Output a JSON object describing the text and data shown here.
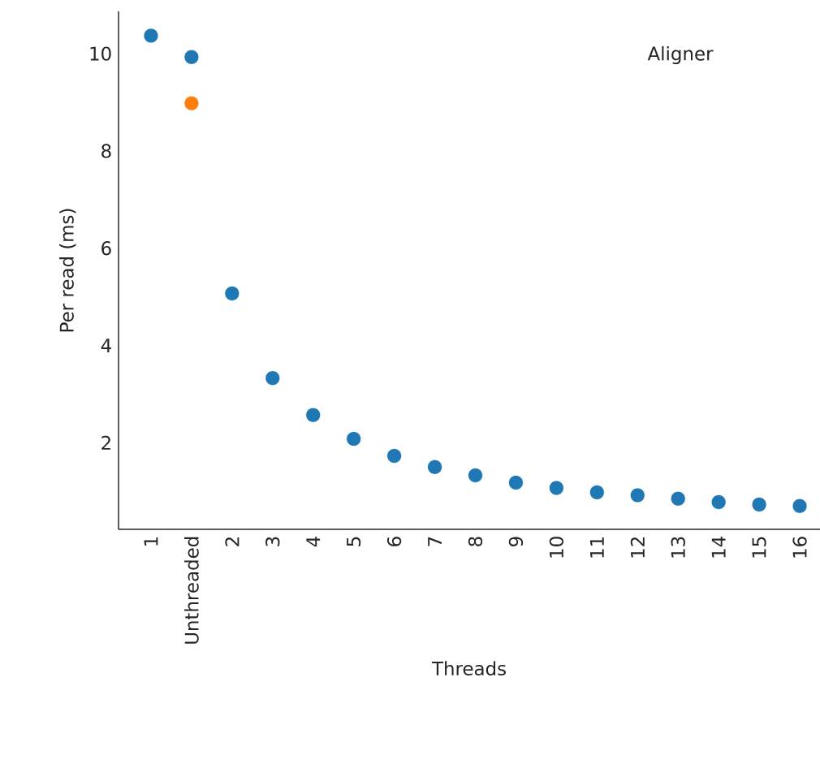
{
  "chart_data": {
    "type": "scatter",
    "xlabel": "Threads",
    "ylabel": "Per read (ms)",
    "legend_title": "Aligner",
    "categories": [
      "1",
      "Unthreaded",
      "2",
      "3",
      "4",
      "5",
      "6",
      "7",
      "8",
      "9",
      "10",
      "11",
      "12",
      "13",
      "14",
      "15",
      "16"
    ],
    "series": [
      {
        "color": "#1f77b4",
        "values": [
          10.37,
          9.93,
          5.07,
          3.33,
          2.57,
          2.08,
          1.73,
          1.5,
          1.33,
          1.18,
          1.07,
          0.98,
          0.92,
          0.85,
          0.78,
          0.73,
          0.7
        ]
      },
      {
        "color": "#ff7f0e",
        "values": [
          null,
          8.98,
          null,
          null,
          null,
          null,
          null,
          null,
          null,
          null,
          null,
          null,
          null,
          null,
          null,
          null,
          null
        ]
      }
    ],
    "ylim": [
      0.22,
      10.87
    ],
    "yticks": [
      2,
      4,
      6,
      8,
      10
    ]
  }
}
